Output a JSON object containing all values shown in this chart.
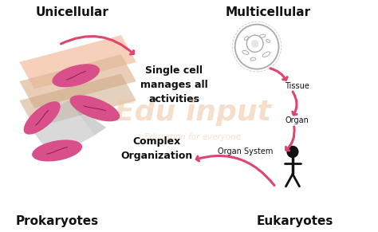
{
  "bg_color": "#ffffff",
  "title_unicellular": "Unicellular",
  "title_multicellular": "Multicellular",
  "label_prokaryotes": "Prokaryotes",
  "label_eukaryotes": "Eukaryotes",
  "label_tissue": "Tissue",
  "label_organ": "Organ",
  "label_organ_system": "Organ System",
  "text_single_cell": "Single cell\nmanages all\nactivities",
  "text_complex": "Complex\nOrganization",
  "arrow_color": "#e0456e",
  "bacteria_color": "#d94f8a",
  "bacteria_line_color": "#7a1040",
  "cell_color": "#aaaaaa",
  "human_color": "#111111",
  "text_color_main": "#111111",
  "book_color1": "#f5c8b0",
  "book_color2": "#e0b898",
  "book_color3": "#ccaa88",
  "diamond_color": "#bbbbbb",
  "watermark_text": "Edu input",
  "watermark_sub": "Education for everyone",
  "watermark_color": "#f0c8a8",
  "bold_label_size": 11,
  "small_label_size": 7,
  "medium_label_size": 9
}
